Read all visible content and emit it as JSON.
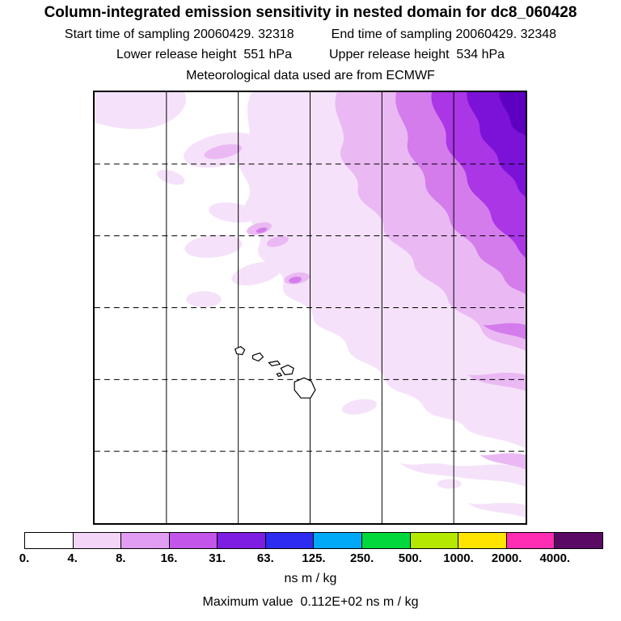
{
  "header": {
    "title": "Column-integrated emission sensitivity in nested domain for dc8_060428",
    "start_time": "Start time of sampling 20060429. 32318",
    "end_time": "End time of sampling 20060429. 32348",
    "lower_release": "Lower release height  551 hPa",
    "upper_release": "Upper release height  534 hPa",
    "met_source": "Meteorological data used are from ECMWF"
  },
  "colorbar": {
    "units": "ns m / kg"
  },
  "footer": {
    "max_value_line": "Maximum value  0.112E+02 ns m / kg"
  },
  "chart_data": {
    "type": "heatmap",
    "title": "Column-integrated emission sensitivity in nested domain for dc8_060428",
    "subtitle_lines": [
      "Start time of sampling 20060429. 32318    End time of sampling 20060429. 32348",
      "Lower release height  551 hPa      Upper release height  534 hPa",
      "Meteorological data used are from ECMWF"
    ],
    "units": "ns m / kg",
    "max_value_text": "0.112E+02 ns m / kg",
    "max_value_numeric": 11.2,
    "colorbar": {
      "orientation": "horizontal",
      "tick_labels": [
        "0.",
        "4.",
        "8.",
        "16.",
        "31.",
        "63.",
        "125.",
        "250.",
        "500.",
        "1000.",
        "2000.",
        "4000."
      ],
      "tick_values": [
        0,
        4,
        8,
        16,
        31,
        63,
        125,
        250,
        500,
        1000,
        2000,
        4000
      ],
      "colors": [
        "#ffffff",
        "#f2d5f7",
        "#e19df1",
        "#c455ea",
        "#7e1ee2",
        "#2d2cf0",
        "#00a8f8",
        "#00d83c",
        "#b4e800",
        "#ffe400",
        "#ff2cb4",
        "#5a0a64"
      ]
    },
    "plume_palette": [
      "#f5e2fa",
      "#eab9f3",
      "#d47cec",
      "#aa36e6",
      "#7c12d8",
      "#5e00c2"
    ],
    "map": {
      "grid_divisions": 6,
      "features": "island coastlines drawn near lower-center of domain",
      "pattern": "sensitivity plume strongest in upper-right corner of domain, decreasing in concentric bands toward the center; scattered weak patches across upper-left quadrant and faint streaks along lower-right edge"
    }
  }
}
